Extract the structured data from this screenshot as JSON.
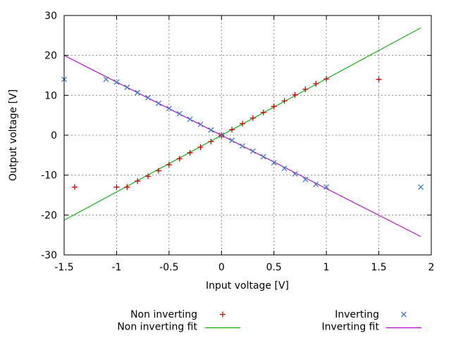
{
  "chart_data": {
    "type": "scatter",
    "title": "",
    "xlabel": "Input voltage [V]",
    "ylabel": "Output voltage [V]",
    "xlim": [
      -1.5,
      2
    ],
    "ylim": [
      -30,
      30
    ],
    "xticks": [
      -1.5,
      -1,
      -0.5,
      0,
      0.5,
      1,
      1.5,
      2
    ],
    "yticks": [
      30,
      20,
      10,
      0,
      -10,
      -20,
      -30
    ],
    "grid": true,
    "grid_color": "#8a8a8a",
    "border_color": "#000000",
    "legend_position": "bottom-center-two-columns",
    "series": [
      {
        "name": "Non inverting",
        "marker": "plus",
        "color": "#d40000",
        "points": [
          [
            -1.4,
            -13
          ],
          [
            -1,
            -13
          ],
          [
            -0.9,
            -13
          ],
          [
            -0.8,
            -11.5
          ],
          [
            -0.7,
            -10.3
          ],
          [
            -0.6,
            -8.9
          ],
          [
            -0.5,
            -7.4
          ],
          [
            -0.4,
            -5.9
          ],
          [
            -0.3,
            -4.4
          ],
          [
            -0.2,
            -3
          ],
          [
            -0.1,
            -1.6
          ],
          [
            0,
            -0.1
          ],
          [
            0.1,
            1.4
          ],
          [
            0.2,
            2.9
          ],
          [
            0.3,
            4.3
          ],
          [
            0.4,
            5.7
          ],
          [
            0.5,
            7.2
          ],
          [
            0.6,
            8.6
          ],
          [
            0.7,
            10.1
          ],
          [
            0.8,
            11.5
          ],
          [
            0.9,
            12.9
          ],
          [
            1,
            14.1
          ],
          [
            1.5,
            14
          ]
        ]
      },
      {
        "name": "Inverting",
        "marker": "cross",
        "color": "#3d7cc9",
        "points": [
          [
            -1.5,
            14
          ],
          [
            -1.1,
            14
          ],
          [
            -1,
            13.3
          ],
          [
            -0.9,
            12
          ],
          [
            -0.8,
            10.7
          ],
          [
            -0.7,
            9.4
          ],
          [
            -0.6,
            8
          ],
          [
            -0.5,
            6.7
          ],
          [
            -0.4,
            5.4
          ],
          [
            -0.3,
            4
          ],
          [
            -0.2,
            2.7
          ],
          [
            -0.1,
            1.3
          ],
          [
            0,
            0
          ],
          [
            0.1,
            -1.3
          ],
          [
            0.2,
            -2.7
          ],
          [
            0.3,
            -4
          ],
          [
            0.4,
            -5.4
          ],
          [
            0.5,
            -6.9
          ],
          [
            0.6,
            -8.3
          ],
          [
            0.7,
            -9.7
          ],
          [
            0.8,
            -11.1
          ],
          [
            0.9,
            -12.3
          ],
          [
            1,
            -13
          ],
          [
            1.9,
            -13
          ]
        ]
      },
      {
        "name": "Non inverting fit",
        "marker": "line",
        "color": "#00b000",
        "line": {
          "x1": -1.5,
          "y1": -21.3,
          "x2": 1.9,
          "y2": 26.9
        }
      },
      {
        "name": "Inverting fit",
        "marker": "line",
        "color": "#b800d0",
        "line": {
          "x1": -1.5,
          "y1": 20.0,
          "x2": 1.9,
          "y2": -25.4
        }
      }
    ]
  }
}
